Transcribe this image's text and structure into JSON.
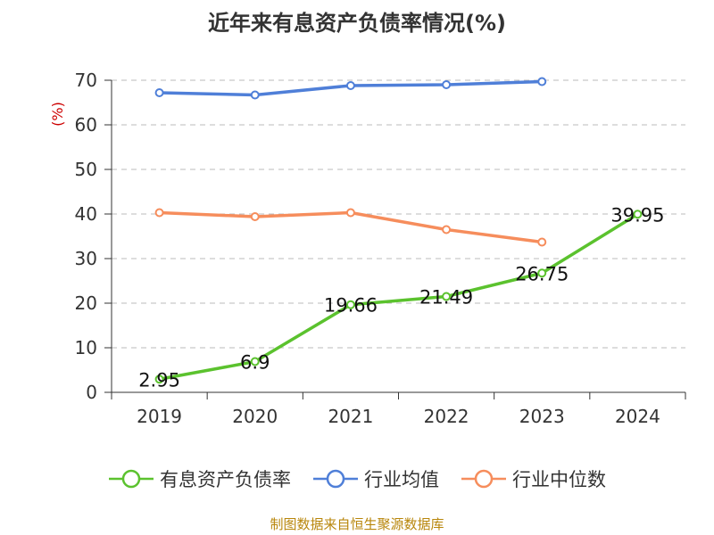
{
  "chart_data": {
    "type": "line",
    "title": "近年来有息资产负债率情况(%)",
    "ylabel": "(%)",
    "xlabel": "",
    "categories": [
      "2019",
      "2020",
      "2021",
      "2022",
      "2023",
      "2024"
    ],
    "ylim": [
      0,
      70
    ],
    "yticks": [
      0,
      10,
      20,
      30,
      40,
      50,
      60,
      70
    ],
    "grid": true,
    "legend_position": "bottom",
    "series": [
      {
        "name": "有息资产负债率",
        "color": "#5bc22e",
        "values": [
          2.95,
          6.9,
          19.66,
          21.49,
          26.75,
          39.95
        ],
        "labels": [
          "2.95",
          "6.9",
          "19.66",
          "21.49",
          "26.75",
          "39.95"
        ]
      },
      {
        "name": "行业均值",
        "color": "#4f7fd8",
        "values": [
          67.2,
          66.7,
          68.8,
          69.0,
          69.7,
          null
        ]
      },
      {
        "name": "行业中位数",
        "color": "#f68d5c",
        "values": [
          40.3,
          39.4,
          40.3,
          36.5,
          33.7,
          null
        ]
      }
    ]
  },
  "source_note": "制图数据来自恒生聚源数据库"
}
